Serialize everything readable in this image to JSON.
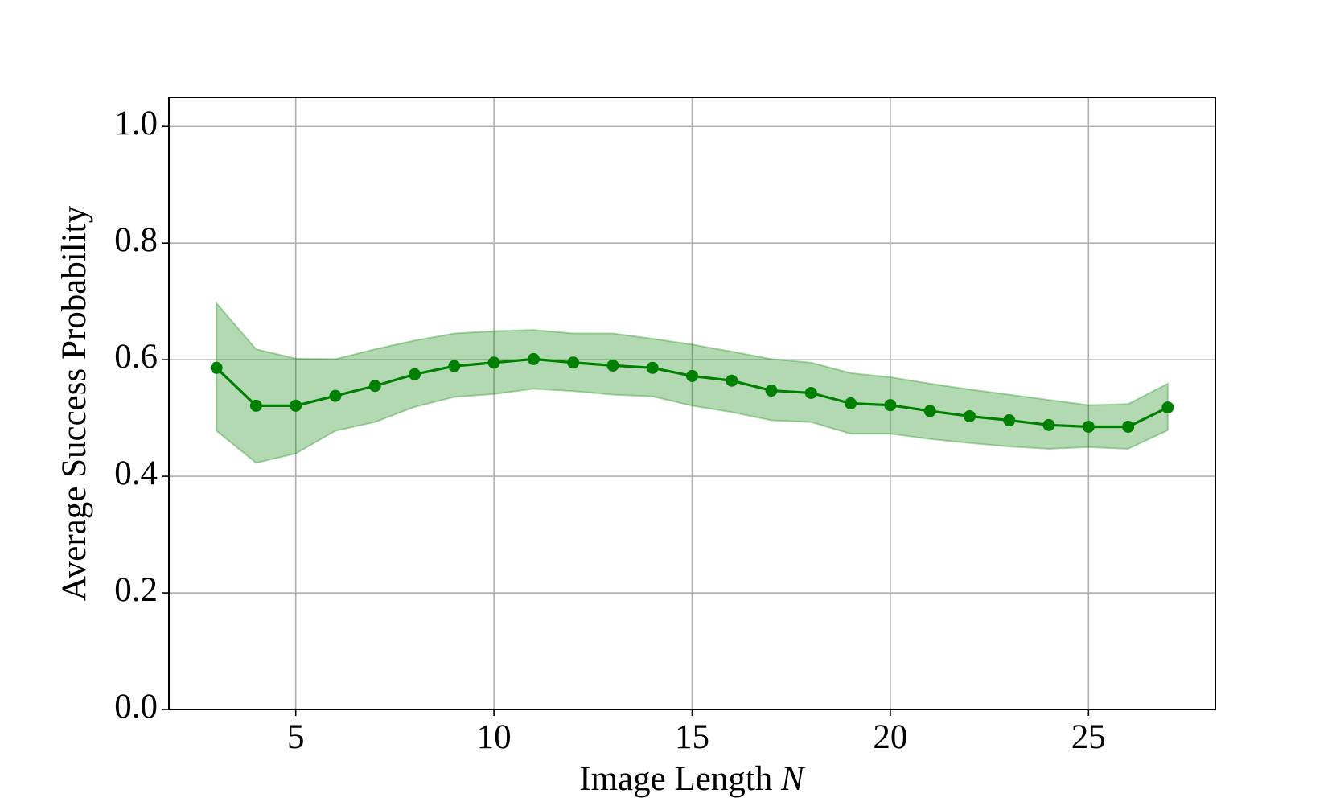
{
  "chart_data": {
    "type": "line",
    "x_label": "Image Length",
    "x_label_variable": "N",
    "y_label": "Average Success Probability",
    "x": [
      3,
      4,
      5,
      6,
      7,
      8,
      9,
      10,
      11,
      12,
      13,
      14,
      15,
      16,
      17,
      18,
      19,
      20,
      21,
      22,
      23,
      24,
      25,
      26,
      27
    ],
    "series": [
      {
        "color": "#008000",
        "band_color": "#008000",
        "values": [
          0.586,
          0.521,
          0.521,
          0.538,
          0.555,
          0.575,
          0.589,
          0.595,
          0.601,
          0.595,
          0.59,
          0.586,
          0.572,
          0.564,
          0.547,
          0.543,
          0.525,
          0.522,
          0.512,
          0.503,
          0.496,
          0.488,
          0.485,
          0.485,
          0.518
        ],
        "upper": [
          0.697,
          0.618,
          0.602,
          0.601,
          0.618,
          0.633,
          0.645,
          0.649,
          0.651,
          0.645,
          0.645,
          0.636,
          0.626,
          0.614,
          0.601,
          0.595,
          0.577,
          0.57,
          0.559,
          0.549,
          0.54,
          0.531,
          0.522,
          0.524,
          0.559
        ],
        "lower": [
          0.478,
          0.423,
          0.439,
          0.478,
          0.493,
          0.519,
          0.536,
          0.541,
          0.55,
          0.546,
          0.54,
          0.537,
          0.521,
          0.51,
          0.496,
          0.493,
          0.473,
          0.473,
          0.464,
          0.457,
          0.451,
          0.447,
          0.45,
          0.447,
          0.479
        ]
      }
    ],
    "xlim": [
      1.8,
      28.2
    ],
    "ylim": [
      0,
      1.05
    ],
    "xticks": [
      5,
      10,
      15,
      20,
      25
    ],
    "yticks": [
      {
        "value": 0,
        "label": "0.0"
      },
      0.2,
      0.4,
      0.6,
      0.8,
      {
        "value": 1,
        "label": "1.0"
      }
    ],
    "grid": true
  }
}
